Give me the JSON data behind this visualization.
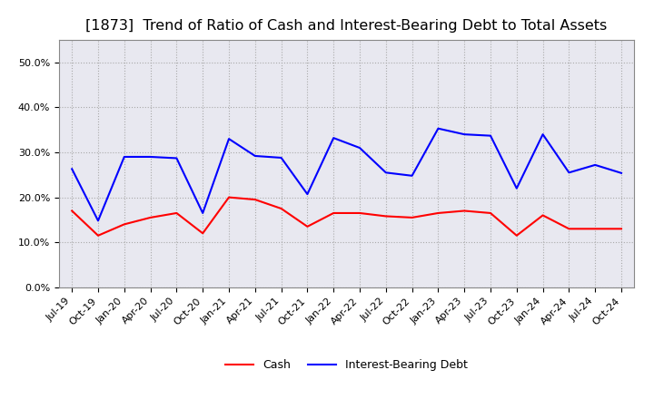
{
  "title": "[1873]  Trend of Ratio of Cash and Interest-Bearing Debt to Total Assets",
  "x_labels": [
    "Jul-19",
    "Oct-19",
    "Jan-20",
    "Apr-20",
    "Jul-20",
    "Oct-20",
    "Jan-21",
    "Apr-21",
    "Jul-21",
    "Oct-21",
    "Jan-22",
    "Apr-22",
    "Jul-22",
    "Oct-22",
    "Jan-23",
    "Apr-23",
    "Jul-23",
    "Oct-23",
    "Jan-24",
    "Apr-24",
    "Jul-24",
    "Oct-24"
  ],
  "cash": [
    0.17,
    0.115,
    0.14,
    0.155,
    0.165,
    0.12,
    0.2,
    0.195,
    0.175,
    0.135,
    0.165,
    0.165,
    0.158,
    0.155,
    0.165,
    0.17,
    0.165,
    0.115,
    0.16,
    0.13,
    0.13,
    0.13
  ],
  "interest_bearing_debt": [
    0.263,
    0.148,
    0.29,
    0.29,
    0.287,
    0.165,
    0.33,
    0.292,
    0.288,
    0.207,
    0.332,
    0.31,
    0.255,
    0.248,
    0.353,
    0.34,
    0.337,
    0.22,
    0.34,
    0.255,
    0.272,
    0.254
  ],
  "cash_color": "#ff0000",
  "debt_color": "#0000ff",
  "ylim": [
    0.0,
    0.55
  ],
  "yticks": [
    0.0,
    0.1,
    0.2,
    0.3,
    0.4,
    0.5
  ],
  "background_color": "#ffffff",
  "plot_bg_color": "#e8e8f0",
  "grid_color": "#aaaaaa",
  "title_fontsize": 11.5,
  "tick_fontsize": 8,
  "legend_cash": "Cash",
  "legend_debt": "Interest-Bearing Debt"
}
